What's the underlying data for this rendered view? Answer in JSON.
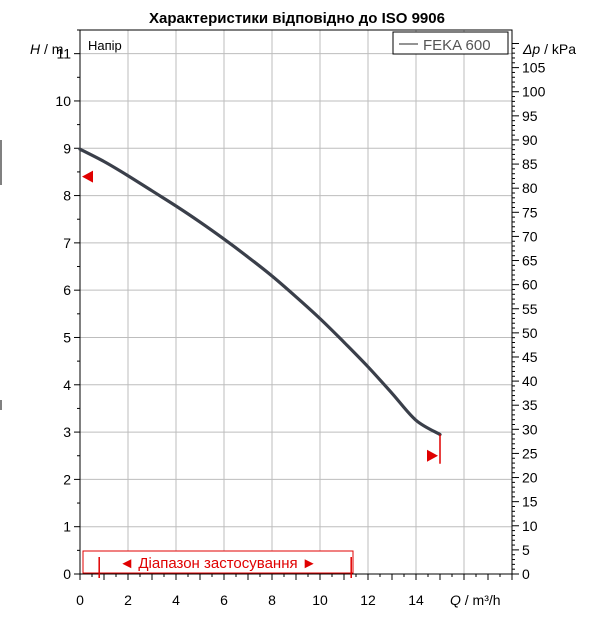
{
  "chart_data": {
    "type": "line",
    "title": "Характеристики відповідно до ISO 9906",
    "subtitle": "Напір",
    "xlabel_var": "Q",
    "xlabel_unit": " / m³/h",
    "ylabel_var": "H",
    "ylabel_unit": " / m",
    "y2label_var": "Δp",
    "y2label_unit": " / kPa",
    "xlim": [
      0,
      18
    ],
    "ylim": [
      0,
      11.5
    ],
    "y2lim": [
      0,
      112.8
    ],
    "x_ticks": [
      0,
      2,
      4,
      6,
      8,
      10,
      12,
      14
    ],
    "y_ticks": [
      0,
      1,
      2,
      3,
      4,
      5,
      6,
      7,
      8,
      9,
      10,
      11
    ],
    "y2_ticks": [
      0,
      5,
      10,
      15,
      20,
      25,
      30,
      35,
      40,
      45,
      50,
      55,
      60,
      65,
      70,
      75,
      80,
      85,
      90,
      95,
      100,
      105
    ],
    "grid": true,
    "legend_position": "top-right",
    "series": [
      {
        "name": "FEKA 600",
        "color": "#3a3f4a",
        "x": [
          0,
          1,
          2,
          3,
          4,
          5,
          6,
          7,
          8,
          9,
          10,
          11,
          12,
          13,
          14,
          15
        ],
        "y": [
          8.98,
          8.72,
          8.42,
          8.1,
          7.78,
          7.44,
          7.08,
          6.7,
          6.3,
          5.86,
          5.4,
          4.9,
          4.38,
          3.82,
          3.25,
          2.95
        ]
      }
    ],
    "operating_range": {
      "label": "◄ Діапазон застосування ►",
      "x_start": 0.8,
      "x_end": 11.3,
      "start_head": 8.4,
      "end_head": 2.5,
      "color": "#e00000"
    }
  }
}
